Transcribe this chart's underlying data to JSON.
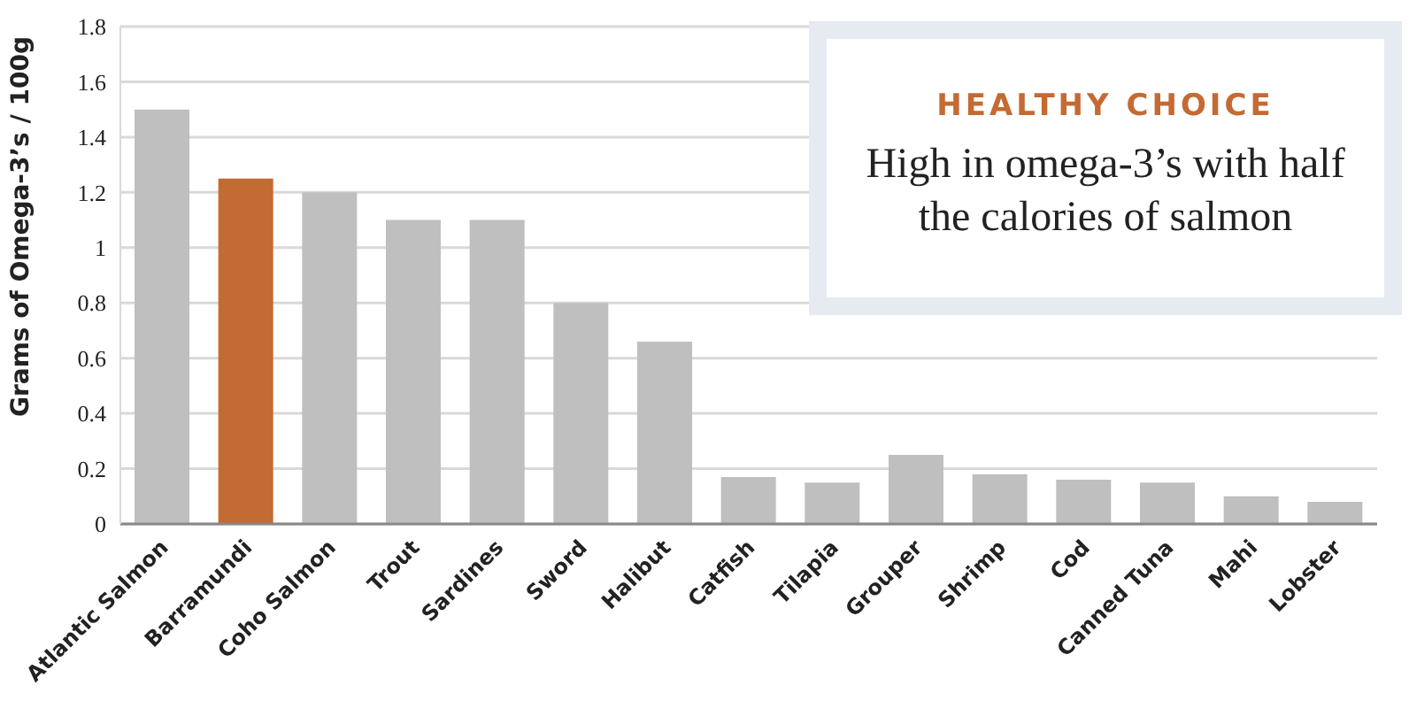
{
  "chart_data": {
    "type": "bar",
    "ylabel": "Grams of Omega-3’s / 100g",
    "categories": [
      "Atlantic Salmon",
      "Barramundi",
      "Coho Salmon",
      "Trout",
      "Sardines",
      "Sword",
      "Halibut",
      "Catfish",
      "Tilapia",
      "Grouper",
      "Shrimp",
      "Cod",
      "Canned Tuna",
      "Mahi",
      "Lobster"
    ],
    "values": [
      1.5,
      1.25,
      1.2,
      1.1,
      1.1,
      0.8,
      0.66,
      0.17,
      0.15,
      0.25,
      0.18,
      0.16,
      0.15,
      0.1,
      0.08
    ],
    "colors": [
      "#bfbfbf",
      "#c46a33",
      "#bfbfbf",
      "#bfbfbf",
      "#bfbfbf",
      "#bfbfbf",
      "#bfbfbf",
      "#bfbfbf",
      "#bfbfbf",
      "#bfbfbf",
      "#bfbfbf",
      "#bfbfbf",
      "#bfbfbf",
      "#bfbfbf",
      "#bfbfbf"
    ],
    "ylim": [
      0,
      1.8
    ],
    "yticks": [
      0,
      0.2,
      0.4,
      0.6,
      0.8,
      1,
      1.2,
      1.4,
      1.6,
      1.8
    ],
    "grid": "y",
    "annotations": [
      "HEALTHY CHOICE",
      "High in omega-3’s with half the calories of salmon"
    ]
  }
}
